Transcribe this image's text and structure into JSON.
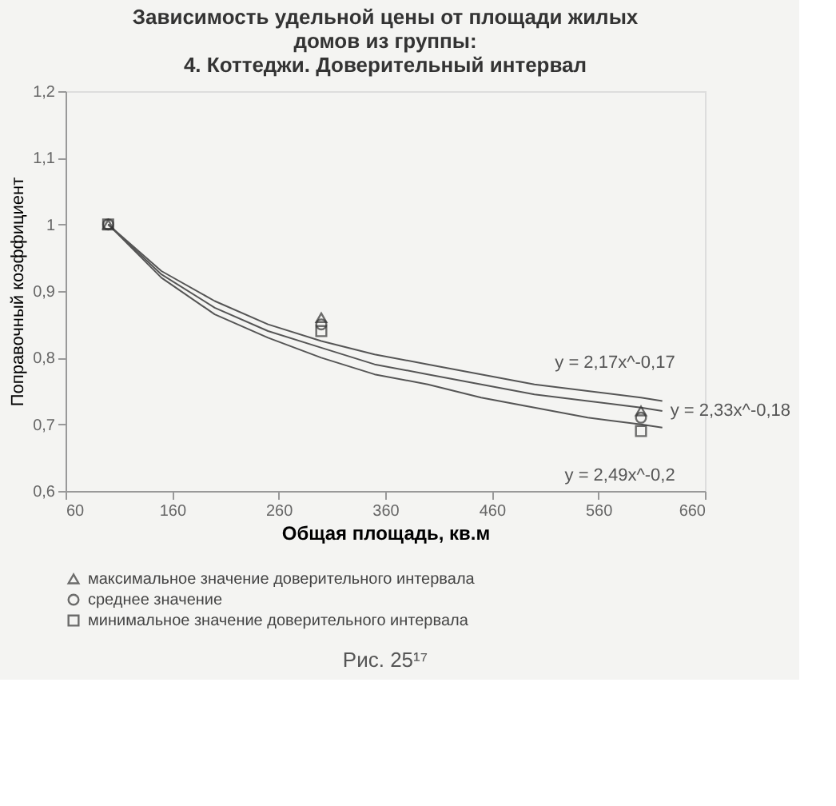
{
  "chart_data": {
    "type": "scatter",
    "title": "Зависимость удельной цены от площади жилых\nдомов из группы:\n4. Коттеджи. Доверительный интервал",
    "xlabel": "Общая площадь, кв.м",
    "ylabel": "Поправочный коэффициент",
    "xlim": [
      60,
      660
    ],
    "xticks": [
      60,
      160,
      260,
      360,
      460,
      560,
      660
    ],
    "ylim": [
      0.6,
      1.2
    ],
    "yticks": [
      {
        "value": 0.6,
        "label": "0,6"
      },
      {
        "value": 0.7,
        "label": "0,7"
      },
      {
        "value": 0.8,
        "label": "0,8"
      },
      {
        "value": 0.9,
        "label": "0,9"
      },
      {
        "value": 1,
        "label": "1"
      },
      {
        "value": 1.1,
        "label": "1,1"
      },
      {
        "value": 1.2,
        "label": "1,2"
      }
    ],
    "grid": false,
    "legend": "bottom",
    "series": [
      {
        "name": "максимальное значение доверительного интервала",
        "marker": "triangle",
        "color": "#333333",
        "x": [
          100,
          300,
          600
        ],
        "values": [
          1.0,
          0.86,
          0.72
        ]
      },
      {
        "name": "среднее значение",
        "marker": "circle",
        "color": "#333333",
        "x": [
          100,
          300,
          600
        ],
        "values": [
          1.0,
          0.85,
          0.71
        ]
      },
      {
        "name": "минимальное значение доверительного интервала",
        "marker": "square",
        "color": "#333333",
        "x": [
          100,
          300,
          600
        ],
        "values": [
          1.0,
          0.84,
          0.69
        ]
      },
      {
        "name": "y = 2,17x^-0,17",
        "type": "line",
        "marker": "none",
        "color": "#555555",
        "x": [
          100,
          150,
          200,
          250,
          300,
          350,
          400,
          450,
          500,
          550,
          600,
          620
        ],
        "values": [
          1.0,
          0.93,
          0.885,
          0.85,
          0.825,
          0.805,
          0.79,
          0.775,
          0.76,
          0.75,
          0.74,
          0.735
        ]
      },
      {
        "name": "y = 2,33x^-0,18",
        "type": "line",
        "marker": "none",
        "color": "#555555",
        "x": [
          100,
          150,
          200,
          250,
          300,
          350,
          400,
          450,
          500,
          550,
          600,
          620
        ],
        "values": [
          1.0,
          0.925,
          0.875,
          0.84,
          0.815,
          0.79,
          0.775,
          0.76,
          0.745,
          0.735,
          0.725,
          0.72
        ]
      },
      {
        "name": "y = 2,49x^-0,2",
        "type": "line",
        "marker": "none",
        "color": "#555555",
        "x": [
          100,
          150,
          200,
          250,
          300,
          350,
          400,
          450,
          500,
          550,
          600,
          620
        ],
        "values": [
          1.0,
          0.92,
          0.865,
          0.83,
          0.8,
          0.775,
          0.76,
          0.74,
          0.725,
          0.71,
          0.7,
          0.695
        ]
      }
    ],
    "annotations": [
      "Рис. 25¹⁷"
    ]
  }
}
